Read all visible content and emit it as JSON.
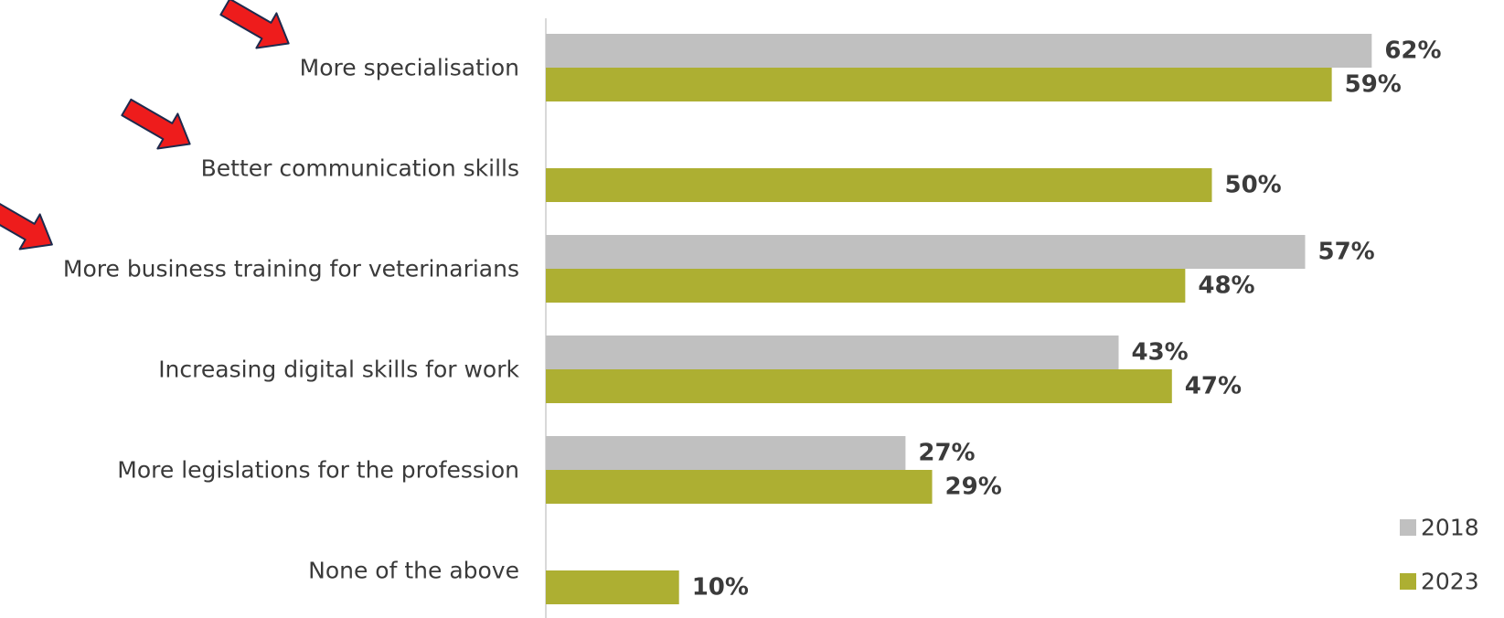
{
  "chart_data": {
    "type": "bar",
    "orientation": "horizontal",
    "categories": [
      "More specialisation",
      "Better communication skills",
      "More business training for veterinarians",
      "Increasing digital skills for work",
      "More legislations for the profession",
      "None of the above"
    ],
    "series": [
      {
        "name": "2018",
        "color": "#c0c0c0",
        "values": [
          62,
          null,
          57,
          43,
          27,
          null
        ],
        "labels": [
          "62%",
          "",
          "57%",
          "43%",
          "27%",
          ""
        ]
      },
      {
        "name": "2023",
        "color": "#adaf32",
        "values": [
          59,
          50,
          48,
          47,
          29,
          10
        ],
        "labels": [
          "59%",
          "50%",
          "48%",
          "47%",
          "29%",
          "10%"
        ]
      }
    ],
    "xlim": [
      0,
      72
    ],
    "grid": false,
    "legend": "bottom-right",
    "highlight_arrows": {
      "color": "#ee1c1c",
      "categories": [
        0,
        1,
        2
      ]
    }
  }
}
